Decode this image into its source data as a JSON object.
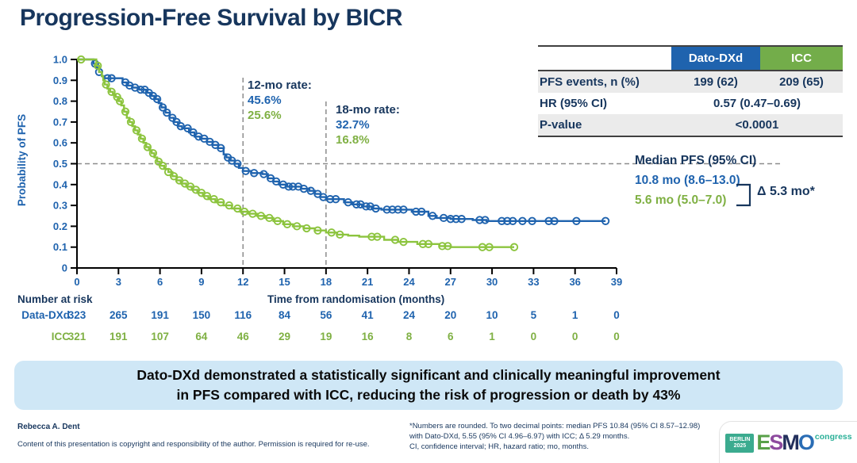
{
  "title": "Progression-Free Survival by BICR",
  "colors": {
    "navy": "#17365d",
    "dato_blue": "#1f63ae",
    "icc_green_curve": "#8cc43e",
    "icc_green_text": "#7fb043",
    "icc_header_bg": "#73ad4a",
    "dashed_gray": "#8c8c8c",
    "banner_bg": "#cfe7f6",
    "table_row_gray": "#ebebeb"
  },
  "results_table": {
    "columns": [
      "Dato-DXd",
      "ICC"
    ],
    "rows": {
      "pfs_events": {
        "label": "PFS events, n (%)",
        "dato": "199 (62)",
        "icc": "209 (65)"
      },
      "hr": {
        "label": "HR (95% CI)",
        "value": "0.57 (0.47–0.69)"
      },
      "pvalue": {
        "label": "P-value",
        "value": "<0.0001"
      }
    }
  },
  "chart_data": {
    "type": "line",
    "subtype": "kaplan-meier-step",
    "title": "Progression-Free Survival by BICR",
    "xlabel": "Time from randomisation (months)",
    "ylabel": "Probability of PFS",
    "xlim": [
      0,
      39
    ],
    "ylim": [
      0,
      1.0
    ],
    "grid": false,
    "xticks": [
      0,
      3,
      6,
      9,
      12,
      15,
      18,
      21,
      24,
      27,
      30,
      33,
      36,
      39
    ],
    "ytick_labels": [
      "1.0",
      "0.9",
      "0.8",
      "0.7",
      "0.6",
      "0.5",
      "0.4",
      "0.3",
      "0.2",
      "0.1",
      "0"
    ],
    "reference_lines": {
      "hline_y": 0.5,
      "vlines_x": [
        12,
        18
      ]
    },
    "rates": {
      "t12": {
        "label": "12-mo rate:",
        "dato": "45.6%",
        "icc": "25.6%"
      },
      "t18": {
        "label": "18-mo rate:",
        "dato": "32.7%",
        "icc": "16.8%"
      }
    },
    "median": {
      "heading": "Median PFS (95% CI)",
      "dato": "10.8 mo (8.6–13.0)",
      "icc": "5.6 mo (5.0–7.0)",
      "delta": "Δ 5.3 mo*"
    },
    "series": [
      {
        "name": "Dato-DXd",
        "color": "#1f63ae",
        "start": [
          0,
          1.0
        ],
        "drops": [
          [
            1.2,
            0.98
          ],
          [
            1.4,
            0.96
          ],
          [
            1.6,
            0.94
          ],
          [
            1.8,
            0.92
          ],
          [
            2.0,
            0.91
          ],
          [
            3.3,
            0.89
          ],
          [
            3.6,
            0.875
          ],
          [
            4.0,
            0.865
          ],
          [
            4.5,
            0.855
          ],
          [
            5.0,
            0.84
          ],
          [
            5.3,
            0.825
          ],
          [
            5.6,
            0.81
          ],
          [
            5.9,
            0.79
          ],
          [
            6.1,
            0.77
          ],
          [
            6.4,
            0.745
          ],
          [
            6.7,
            0.72
          ],
          [
            7.0,
            0.7
          ],
          [
            7.3,
            0.68
          ],
          [
            7.6,
            0.67
          ],
          [
            8.1,
            0.65
          ],
          [
            8.5,
            0.63
          ],
          [
            8.9,
            0.62
          ],
          [
            9.4,
            0.605
          ],
          [
            9.8,
            0.59
          ],
          [
            10.2,
            0.575
          ],
          [
            10.6,
            0.545
          ],
          [
            10.8,
            0.53
          ],
          [
            11.1,
            0.515
          ],
          [
            11.4,
            0.5
          ],
          [
            11.7,
            0.48
          ],
          [
            12.0,
            0.465
          ],
          [
            12.6,
            0.455
          ],
          [
            13.4,
            0.45
          ],
          [
            13.8,
            0.43
          ],
          [
            14.2,
            0.415
          ],
          [
            14.6,
            0.4
          ],
          [
            15.2,
            0.39
          ],
          [
            16.2,
            0.38
          ],
          [
            16.8,
            0.37
          ],
          [
            17.2,
            0.355
          ],
          [
            17.6,
            0.34
          ],
          [
            18.0,
            0.33
          ],
          [
            19.3,
            0.315
          ],
          [
            19.9,
            0.305
          ],
          [
            20.6,
            0.295
          ],
          [
            21.3,
            0.285
          ],
          [
            22.0,
            0.28
          ],
          [
            24.2,
            0.27
          ],
          [
            25.4,
            0.25
          ],
          [
            26.0,
            0.24
          ],
          [
            27.0,
            0.235
          ],
          [
            28.6,
            0.23
          ],
          [
            29.6,
            0.225
          ]
        ],
        "end_x": 38.2,
        "censor_x": [
          1.3,
          1.6,
          2.2,
          2.5,
          3.5,
          3.8,
          4.2,
          4.6,
          4.9,
          5.2,
          5.5,
          5.8,
          6.2,
          6.5,
          6.9,
          7.2,
          7.5,
          8.0,
          8.4,
          8.8,
          9.2,
          9.6,
          10.0,
          10.4,
          10.9,
          11.2,
          11.6,
          12.2,
          12.8,
          13.5,
          14.0,
          14.4,
          14.9,
          15.3,
          15.6,
          16.0,
          16.4,
          16.9,
          17.4,
          17.8,
          18.3,
          18.7,
          19.6,
          20.2,
          20.5,
          20.9,
          21.2,
          21.6,
          22.4,
          22.8,
          23.2,
          23.6,
          24.5,
          24.9,
          25.7,
          26.5,
          27.0,
          27.4,
          27.8,
          29.1,
          29.5,
          30.7,
          31.1,
          31.5,
          32.2,
          32.9,
          34.1,
          34.5,
          36.1,
          38.2
        ]
      },
      {
        "name": "ICC",
        "color": "#8cc43e",
        "start": [
          0,
          1.0
        ],
        "drops": [
          [
            1.4,
            0.97
          ],
          [
            1.6,
            0.94
          ],
          [
            1.8,
            0.92
          ],
          [
            1.9,
            0.9
          ],
          [
            2.0,
            0.88
          ],
          [
            2.2,
            0.86
          ],
          [
            2.4,
            0.845
          ],
          [
            2.6,
            0.83
          ],
          [
            2.8,
            0.82
          ],
          [
            3.0,
            0.8
          ],
          [
            3.2,
            0.78
          ],
          [
            3.4,
            0.75
          ],
          [
            3.6,
            0.72
          ],
          [
            3.8,
            0.7
          ],
          [
            4.0,
            0.68
          ],
          [
            4.2,
            0.66
          ],
          [
            4.4,
            0.64
          ],
          [
            4.6,
            0.62
          ],
          [
            4.8,
            0.6
          ],
          [
            5.0,
            0.58
          ],
          [
            5.2,
            0.565
          ],
          [
            5.4,
            0.55
          ],
          [
            5.6,
            0.53
          ],
          [
            5.8,
            0.51
          ],
          [
            6.0,
            0.49
          ],
          [
            6.3,
            0.475
          ],
          [
            6.6,
            0.46
          ],
          [
            6.9,
            0.44
          ],
          [
            7.2,
            0.42
          ],
          [
            7.5,
            0.405
          ],
          [
            7.9,
            0.39
          ],
          [
            8.3,
            0.375
          ],
          [
            8.7,
            0.36
          ],
          [
            9.1,
            0.345
          ],
          [
            9.5,
            0.33
          ],
          [
            10.0,
            0.315
          ],
          [
            10.6,
            0.3
          ],
          [
            11.2,
            0.285
          ],
          [
            11.8,
            0.27
          ],
          [
            12.4,
            0.26
          ],
          [
            13.0,
            0.25
          ],
          [
            13.6,
            0.24
          ],
          [
            14.2,
            0.225
          ],
          [
            14.9,
            0.21
          ],
          [
            15.6,
            0.2
          ],
          [
            16.4,
            0.19
          ],
          [
            17.2,
            0.18
          ],
          [
            18.0,
            0.17
          ],
          [
            18.8,
            0.16
          ],
          [
            19.6,
            0.155
          ],
          [
            20.4,
            0.15
          ],
          [
            22.2,
            0.135
          ],
          [
            23.2,
            0.125
          ],
          [
            24.6,
            0.115
          ],
          [
            26.2,
            0.105
          ],
          [
            27.0,
            0.1
          ]
        ],
        "end_x": 31.6,
        "censor_x": [
          0.3,
          1.5,
          2.1,
          2.5,
          2.9,
          3.1,
          3.5,
          3.9,
          4.3,
          4.7,
          5.1,
          5.5,
          5.9,
          6.2,
          6.6,
          7.0,
          7.4,
          7.8,
          8.2,
          8.6,
          9.0,
          9.4,
          9.9,
          10.4,
          11.0,
          11.6,
          12.1,
          12.7,
          13.3,
          13.9,
          14.5,
          15.2,
          15.9,
          16.6,
          17.4,
          18.4,
          19.0,
          21.3,
          21.7,
          23.0,
          23.6,
          25.0,
          25.4,
          26.4,
          26.8,
          29.3,
          29.8,
          31.6
        ]
      }
    ],
    "number_at_risk": {
      "title": "Number at risk",
      "rows": [
        {
          "label": "Data-DXd",
          "color": "#1f63ae",
          "counts": [
            323,
            265,
            191,
            150,
            116,
            84,
            56,
            41,
            24,
            20,
            10,
            5,
            1,
            0
          ]
        },
        {
          "label": "ICC",
          "color": "#7fb043",
          "counts": [
            321,
            191,
            107,
            64,
            46,
            29,
            19,
            16,
            8,
            6,
            1,
            0,
            0,
            0
          ]
        }
      ]
    }
  },
  "banner": {
    "line1": "Dato-DXd demonstrated a statistically significant and clinically meaningful improvement",
    "line2": "in PFS compared with ICC, reducing the risk of progression or death by 43%"
  },
  "footer": {
    "presenter": "Rebecca A. Dent",
    "copyright": "Content of this presentation is copyright and responsibility of the author. Permission is required for re-use.",
    "footnote_line1": "*Numbers are rounded. To two decimal points: median PFS 10.84 (95% CI 8.57–12.98)",
    "footnote_line2": "with Dato-DXd, 5.55 (95% CI 4.96–6.97) with ICC; Δ 5.29 months.",
    "footnote_line3": "CI, confidence interval; HR, hazard ratio; mo, months."
  },
  "logo": {
    "venue_line1": "BERLIN",
    "venue_line2": "2025",
    "letters": {
      "e": "E",
      "s": "S",
      "m": "M",
      "o": "O"
    },
    "letter_colors": {
      "e": "#58a049",
      "s": "#8d4a9e",
      "m": "#232f5c",
      "o": "#2a6db5"
    },
    "congress": "congress"
  }
}
